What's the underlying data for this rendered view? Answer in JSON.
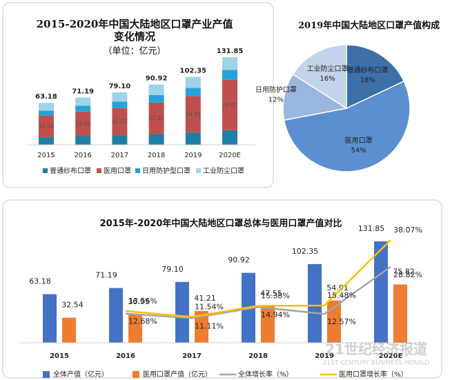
{
  "chart_data": [
    {
      "type": "bar",
      "stacked": true,
      "title": "2015-2020年中国大陆地区口罩产业产值变化情况",
      "subtitle": "（单位：亿元）",
      "categories": [
        "2015",
        "2016",
        "2017",
        "2018",
        "2019",
        "2020E"
      ],
      "totals": [
        63.18,
        71.19,
        79.1,
        90.92,
        102.35,
        131.85
      ],
      "total_labels": [
        "63.18",
        "71.19",
        "79.10",
        "90.92",
        "102.35",
        "131.85"
      ],
      "series": [
        {
          "name": "普通纱布口罩",
          "color": "#1f7ea6",
          "values": [
            11.5,
            13,
            14,
            16,
            18.4,
            22
          ]
        },
        {
          "name": "医用口罩",
          "color": "#c0504d",
          "values": [
            32.54,
            36.95,
            41.21,
            47.55,
            54.91,
            75.82
          ]
        },
        {
          "name": "日用防护型口罩",
          "color": "#27a2d8",
          "values": [
            7.5,
            9,
            10,
            11.5,
            12.3,
            15
          ]
        },
        {
          "name": "工业防尘口罩",
          "color": "#9fd3e8",
          "values": [
            11.64,
            12.24,
            13.89,
            15.87,
            16.74,
            19.03
          ]
        }
      ]
    },
    {
      "type": "pie",
      "title": "2019年中国大陆地区口罩产值构成",
      "categories": [
        "普通纱布口罩",
        "医用口罩",
        "日用防护口罩",
        "工业防尘口罩"
      ],
      "values": [
        18,
        54,
        12,
        16
      ],
      "value_labels": [
        "18%",
        "54%",
        "12%",
        "16%"
      ],
      "colors": [
        "#3d6fa8",
        "#5b8fcf",
        "#9ab6dd",
        "#c3d3ea"
      ]
    },
    {
      "type": "combo",
      "title": "2015年-2020年中国大陆地区口罩总体与医用口罩产值对比",
      "categories": [
        "2015",
        "2016",
        "2017",
        "2018",
        "2019",
        "2020E"
      ],
      "series": [
        {
          "name": "全体产值（亿元）",
          "type": "bar",
          "color": "#4472c4",
          "values": [
            63.18,
            71.19,
            79.1,
            90.92,
            102.35,
            131.85
          ],
          "value_labels": [
            "63.18",
            "71.19",
            "79.10",
            "90.92",
            "102.35",
            "131.85"
          ]
        },
        {
          "name": "医用口罩产值（亿元）",
          "type": "bar",
          "color": "#ed7d31",
          "values": [
            32.54,
            36.95,
            41.21,
            47.55,
            54.91,
            75.82
          ]
        },
        {
          "name": "全体增长率（%）",
          "type": "line",
          "axis": "y2",
          "color": "#a5a5a5",
          "values": [
            null,
            12.68,
            11.11,
            14.94,
            12.57,
            28.82
          ],
          "value_labels": [
            null,
            "12.68%",
            "11.11%",
            "14.94%",
            "12.57%",
            "28.82%"
          ]
        },
        {
          "name": "医用口罩增长率（%）",
          "type": "line",
          "axis": "y2",
          "color": "#ffc000",
          "values": [
            null,
            13.56,
            11.54,
            15.38,
            15.48,
            38.07
          ],
          "value_labels": [
            null,
            "13.56%",
            "11.54%",
            "15.38%",
            "15.48%",
            "38.07%"
          ]
        }
      ]
    }
  ],
  "watermark": {
    "name": "21世纪经济报道",
    "english": "21ST CENTURY BUSINESS HERALD"
  }
}
